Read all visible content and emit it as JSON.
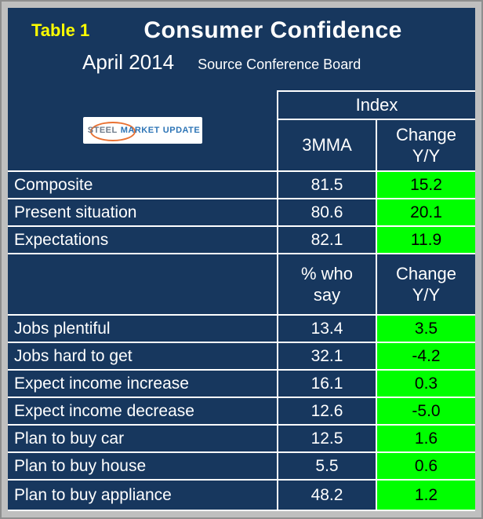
{
  "colors": {
    "background": "#17375E",
    "frame": "#BFBFBF",
    "grid_line": "#FFFFFF",
    "positive_cell": "#00FF00",
    "table_label_text": "#FFFF00",
    "body_text": "#FFFFFF",
    "logo_orange": "#E97132",
    "logo_blue": "#2E75B6"
  },
  "title": {
    "table_label": "Table 1",
    "main": "Consumer Confidence",
    "period": "April 2014",
    "source": "Source Conference Board"
  },
  "logo": {
    "steel": "STEEL",
    "market": "MARKET",
    "update": "UPDATE"
  },
  "table": {
    "index_header": "Index",
    "col1_header": "3MMA",
    "col2_header": "Change\nY/Y",
    "sub_col1_header": "% who\nsay",
    "sub_col2_header": "Change\nY/Y",
    "section1_rows": [
      {
        "label": "Composite",
        "value": "81.5",
        "change": "15.2"
      },
      {
        "label": "Present situation",
        "value": "80.6",
        "change": "20.1"
      },
      {
        "label": "Expectations",
        "value": "82.1",
        "change": "11.9"
      }
    ],
    "section2_rows": [
      {
        "label": "Jobs plentiful",
        "value": "13.4",
        "change": "3.5"
      },
      {
        "label": "Jobs hard to get",
        "value": "32.1",
        "change": "-4.2"
      },
      {
        "label": "Expect income increase",
        "value": "16.1",
        "change": "0.3"
      },
      {
        "label": "Expect income decrease",
        "value": "12.6",
        "change": "-5.0"
      },
      {
        "label": "Plan to buy car",
        "value": "12.5",
        "change": "1.6"
      },
      {
        "label": "Plan to buy house",
        "value": "5.5",
        "change": "0.6"
      },
      {
        "label": "Plan to buy appliance",
        "value": "48.2",
        "change": "1.2"
      }
    ]
  },
  "chart_data": {
    "type": "table",
    "title": "Consumer Confidence",
    "subtitle": "April 2014",
    "source": "Source Conference Board",
    "sections": [
      {
        "group_header": "Index",
        "columns": [
          "3MMA",
          "Change Y/Y"
        ],
        "rows": [
          {
            "label": "Composite",
            "mma3": 81.5,
            "change_yy": 15.2
          },
          {
            "label": "Present situation",
            "mma3": 80.6,
            "change_yy": 20.1
          },
          {
            "label": "Expectations",
            "mma3": 82.1,
            "change_yy": 11.9
          }
        ]
      },
      {
        "group_header": "",
        "columns": [
          "% who say",
          "Change Y/Y"
        ],
        "rows": [
          {
            "label": "Jobs plentiful",
            "pct_who_say": 13.4,
            "change_yy": 3.5
          },
          {
            "label": "Jobs hard to get",
            "pct_who_say": 32.1,
            "change_yy": -4.2
          },
          {
            "label": "Expect income increase",
            "pct_who_say": 16.1,
            "change_yy": 0.3
          },
          {
            "label": "Expect income decrease",
            "pct_who_say": 12.6,
            "change_yy": -5.0
          },
          {
            "label": "Plan to buy car",
            "pct_who_say": 12.5,
            "change_yy": 1.6
          },
          {
            "label": "Plan to buy house",
            "pct_who_say": 5.5,
            "change_yy": 0.6
          },
          {
            "label": "Plan to buy appliance",
            "pct_who_say": 48.2,
            "change_yy": 1.2
          }
        ]
      }
    ],
    "notes": "Change Y/Y column cells highlighted bright green"
  }
}
